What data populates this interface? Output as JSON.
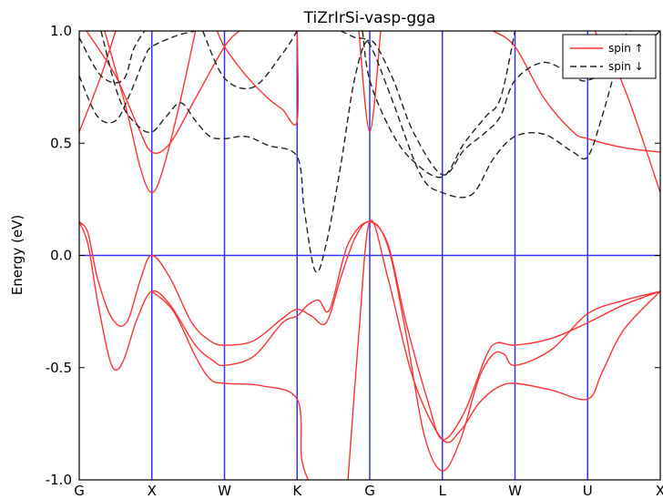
{
  "chart_data": {
    "type": "line",
    "title": "TiZrIrSi-vasp-gga",
    "xlabel": "",
    "ylabel": "Energy (eV)",
    "ylim": [
      -1.0,
      1.0
    ],
    "y_ticks": [
      "-1.0",
      "-0.5",
      "0.0",
      "0.5",
      "1.0"
    ],
    "y_tick_values": [
      -1.0,
      -0.5,
      0.0,
      0.5,
      1.0
    ],
    "k_points": [
      {
        "label": "G",
        "x": 0.0
      },
      {
        "label": "X",
        "x": 1.0
      },
      {
        "label": "W",
        "x": 2.0
      },
      {
        "label": "K",
        "x": 3.0
      },
      {
        "label": "G",
        "x": 4.0
      },
      {
        "label": "L",
        "x": 5.0
      },
      {
        "label": "W",
        "x": 6.0
      },
      {
        "label": "U",
        "x": 7.0
      },
      {
        "label": "X",
        "x": 8.0
      }
    ],
    "xlim": [
      0,
      8
    ],
    "grid": false,
    "fermi_level": 0.0,
    "legend_position": "top-right",
    "colors": {
      "spin_up": "#ff3333",
      "spin_down": "#222222",
      "kpoint_lines": "#3333ff"
    },
    "series": [
      {
        "name": "spin ↑",
        "spin": "up",
        "points": [
          [
            0,
            0.15
          ],
          [
            0.12,
            0.1
          ],
          [
            0.25,
            -0.1
          ],
          [
            0.45,
            -0.28
          ],
          [
            0.65,
            -0.3
          ],
          [
            0.85,
            -0.1
          ],
          [
            1.0,
            0.0
          ],
          [
            1.25,
            -0.1
          ],
          [
            1.55,
            -0.3
          ],
          [
            1.8,
            -0.38
          ],
          [
            2.0,
            -0.4
          ],
          [
            2.4,
            -0.38
          ],
          [
            2.8,
            -0.28
          ],
          [
            3.0,
            -0.24
          ],
          [
            3.2,
            -0.27
          ],
          [
            3.4,
            -0.3
          ],
          [
            3.6,
            -0.1
          ],
          [
            3.8,
            0.08
          ],
          [
            4.0,
            0.15
          ],
          [
            4.25,
            0.05
          ],
          [
            4.5,
            -0.3
          ],
          [
            4.8,
            -0.65
          ],
          [
            5.0,
            -0.82
          ],
          [
            5.3,
            -0.7
          ],
          [
            5.6,
            -0.45
          ],
          [
            5.75,
            -0.39
          ],
          [
            6.0,
            -0.4
          ],
          [
            6.5,
            -0.37
          ],
          [
            7.0,
            -0.3
          ],
          [
            7.5,
            -0.22
          ],
          [
            8.0,
            -0.16
          ]
        ]
      },
      {
        "name": "spin ↑",
        "spin": "up",
        "points": [
          [
            0,
            0.15
          ],
          [
            0.12,
            0.05
          ],
          [
            0.25,
            -0.2
          ],
          [
            0.4,
            -0.44
          ],
          [
            0.5,
            -0.51
          ],
          [
            0.62,
            -0.46
          ],
          [
            0.8,
            -0.28
          ],
          [
            1.0,
            -0.16
          ],
          [
            1.25,
            -0.22
          ],
          [
            1.6,
            -0.4
          ],
          [
            1.85,
            -0.47
          ],
          [
            2.0,
            -0.49
          ],
          [
            2.4,
            -0.45
          ],
          [
            2.8,
            -0.3
          ],
          [
            3.0,
            -0.27
          ],
          [
            3.15,
            -0.22
          ],
          [
            3.3,
            -0.2
          ],
          [
            3.45,
            -0.24
          ],
          [
            3.7,
            0.05
          ],
          [
            4.0,
            0.15
          ],
          [
            4.25,
            0.04
          ],
          [
            4.5,
            -0.35
          ],
          [
            4.75,
            -0.8
          ],
          [
            5.0,
            -0.96
          ],
          [
            5.25,
            -0.82
          ],
          [
            5.5,
            -0.55
          ],
          [
            5.7,
            -0.44
          ],
          [
            5.85,
            -0.44
          ],
          [
            6.0,
            -0.49
          ],
          [
            6.5,
            -0.42
          ],
          [
            7.0,
            -0.26
          ],
          [
            7.5,
            -0.2
          ],
          [
            8.0,
            -0.16
          ]
        ]
      },
      {
        "name": "spin ↑",
        "spin": "up",
        "points": [
          [
            1.0,
            -0.16
          ],
          [
            1.3,
            -0.25
          ],
          [
            1.6,
            -0.45
          ],
          [
            1.8,
            -0.55
          ],
          [
            2.0,
            -0.57
          ],
          [
            2.5,
            -0.58
          ],
          [
            3.0,
            -0.64
          ],
          [
            3.06,
            -0.9
          ],
          [
            3.15,
            -1.0
          ]
        ]
      },
      {
        "name": "spin ↑",
        "spin": "up",
        "points": [
          [
            3.7,
            -1.0
          ],
          [
            3.85,
            -0.35
          ],
          [
            4.0,
            0.15
          ],
          [
            4.25,
            -0.1
          ],
          [
            4.6,
            -0.55
          ],
          [
            5.0,
            -0.82
          ],
          [
            5.25,
            -0.78
          ],
          [
            5.5,
            -0.66
          ],
          [
            5.75,
            -0.59
          ],
          [
            6.0,
            -0.57
          ],
          [
            6.5,
            -0.6
          ],
          [
            7.0,
            -0.64
          ],
          [
            7.2,
            -0.52
          ],
          [
            7.5,
            -0.33
          ],
          [
            8.0,
            -0.16
          ]
        ]
      },
      {
        "name": "spin ↑",
        "spin": "up",
        "points": [
          [
            0,
            0.55
          ],
          [
            0.3,
            0.8
          ],
          [
            0.5,
            1.0
          ]
        ]
      },
      {
        "name": "spin ↑",
        "spin": "up",
        "points": [
          [
            0.1,
            1.0
          ],
          [
            0.5,
            0.8
          ],
          [
            0.8,
            0.58
          ],
          [
            1.0,
            0.46
          ],
          [
            1.25,
            0.5
          ],
          [
            1.6,
            0.7
          ],
          [
            2.0,
            0.93
          ],
          [
            2.2,
            1.0
          ]
        ]
      },
      {
        "name": "spin ↑",
        "spin": "up",
        "points": [
          [
            0.35,
            1.0
          ],
          [
            0.65,
            0.65
          ],
          [
            0.85,
            0.38
          ],
          [
            1.0,
            0.28
          ],
          [
            1.15,
            0.38
          ],
          [
            1.4,
            0.7
          ],
          [
            1.6,
            1.0
          ]
        ]
      },
      {
        "name": "spin ↑",
        "spin": "up",
        "points": [
          [
            1.9,
            1.0
          ],
          [
            2.0,
            0.93
          ],
          [
            2.3,
            0.8
          ],
          [
            2.6,
            0.7
          ],
          [
            2.8,
            0.65
          ],
          [
            3.0,
            0.6
          ],
          [
            3.0,
            1.0
          ]
        ]
      },
      {
        "name": "spin ↑",
        "spin": "up",
        "points": [
          [
            3.85,
            1.0
          ],
          [
            4.0,
            0.55
          ],
          [
            4.15,
            1.0
          ]
        ]
      },
      {
        "name": "spin ↑",
        "spin": "up",
        "points": [
          [
            5.7,
            1.0
          ],
          [
            6.0,
            0.93
          ],
          [
            6.4,
            0.7
          ],
          [
            6.8,
            0.55
          ],
          [
            7.0,
            0.52
          ],
          [
            7.5,
            0.48
          ],
          [
            8.0,
            0.46
          ]
        ]
      },
      {
        "name": "spin ↑",
        "spin": "up",
        "points": [
          [
            7.1,
            1.0
          ],
          [
            7.5,
            0.75
          ],
          [
            8.0,
            0.28
          ]
        ]
      },
      {
        "name": "spin ↓",
        "spin": "down",
        "points": [
          [
            0,
            0.97
          ],
          [
            0.3,
            0.8
          ],
          [
            0.6,
            0.78
          ],
          [
            0.75,
            0.92
          ],
          [
            0.9,
            1.0
          ]
        ]
      },
      {
        "name": "spin ↓",
        "spin": "down",
        "points": [
          [
            0,
            0.8
          ],
          [
            0.25,
            0.62
          ],
          [
            0.5,
            0.6
          ],
          [
            0.7,
            0.72
          ],
          [
            0.9,
            0.88
          ],
          [
            1.0,
            0.93
          ],
          [
            1.35,
            0.98
          ],
          [
            1.6,
            1.0
          ]
        ]
      },
      {
        "name": "spin ↓",
        "spin": "down",
        "points": [
          [
            0.3,
            1.0
          ],
          [
            0.55,
            0.7
          ],
          [
            0.8,
            0.58
          ],
          [
            1.0,
            0.55
          ],
          [
            1.2,
            0.62
          ],
          [
            1.4,
            0.68
          ],
          [
            1.6,
            0.6
          ],
          [
            1.8,
            0.53
          ],
          [
            2.0,
            0.52
          ],
          [
            2.3,
            0.53
          ],
          [
            2.6,
            0.49
          ],
          [
            3.0,
            0.44
          ],
          [
            3.1,
            0.2
          ],
          [
            3.25,
            -0.07
          ],
          [
            3.4,
            0.05
          ],
          [
            3.6,
            0.4
          ],
          [
            3.8,
            0.8
          ],
          [
            4.0,
            0.96
          ],
          [
            4.3,
            0.8
          ],
          [
            4.6,
            0.55
          ],
          [
            5.0,
            0.36
          ],
          [
            5.3,
            0.47
          ],
          [
            5.6,
            0.55
          ],
          [
            5.8,
            0.62
          ],
          [
            6.0,
            0.78
          ],
          [
            6.4,
            0.86
          ],
          [
            6.8,
            0.8
          ],
          [
            7.0,
            0.78
          ],
          [
            7.5,
            0.86
          ],
          [
            8.0,
            1.0
          ]
        ]
      },
      {
        "name": "spin ↓",
        "spin": "down",
        "points": [
          [
            1.7,
            1.0
          ],
          [
            2.0,
            0.79
          ],
          [
            2.4,
            0.75
          ],
          [
            2.8,
            0.9
          ],
          [
            3.0,
            1.0
          ]
        ]
      },
      {
        "name": "spin ↓",
        "spin": "down",
        "points": [
          [
            3.6,
            1.0
          ],
          [
            3.8,
            0.97
          ],
          [
            4.0,
            0.94
          ],
          [
            4.3,
            0.7
          ],
          [
            4.7,
            0.36
          ],
          [
            5.0,
            0.28
          ],
          [
            5.4,
            0.27
          ],
          [
            5.7,
            0.43
          ],
          [
            6.0,
            0.53
          ],
          [
            6.4,
            0.54
          ],
          [
            6.8,
            0.46
          ],
          [
            7.0,
            0.44
          ],
          [
            7.2,
            0.62
          ],
          [
            7.5,
            0.96
          ],
          [
            7.6,
            1.0
          ]
        ]
      },
      {
        "name": "spin ↓",
        "spin": "down",
        "points": [
          [
            3.9,
            1.0
          ],
          [
            4.0,
            0.78
          ],
          [
            4.3,
            0.55
          ],
          [
            4.6,
            0.42
          ],
          [
            5.0,
            0.35
          ],
          [
            5.3,
            0.5
          ],
          [
            5.6,
            0.62
          ],
          [
            5.8,
            0.7
          ],
          [
            6.0,
            1.0
          ]
        ]
      }
    ]
  }
}
